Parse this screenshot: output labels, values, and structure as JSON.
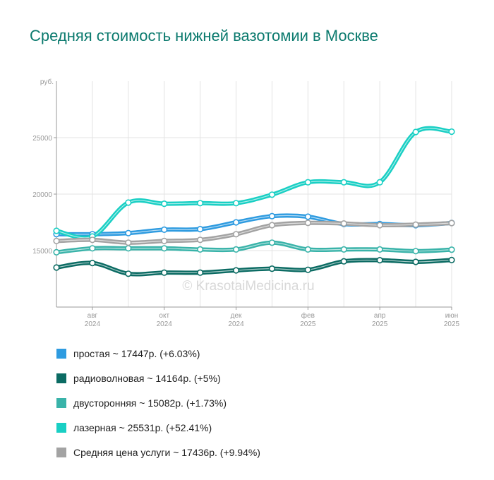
{
  "chart_data": {
    "type": "line",
    "title": "Средняя стоимость нижней вазотомии в Москве",
    "ylabel": "руб.",
    "ylim": [
      10000,
      30000
    ],
    "yticks": [
      15000,
      20000,
      25000
    ],
    "grid": true,
    "legend_position": "bottom",
    "watermark": "© KrasotaiMedicina.ru",
    "x": [
      "2024-07",
      "2024-08",
      "2024-09",
      "2024-10",
      "2024-11",
      "2024-12",
      "2025-01",
      "2025-02",
      "2025-03",
      "2025-04",
      "2025-05",
      "2025-06"
    ],
    "x_tick_labels": [
      {
        "x": "2024-08",
        "month": "авг",
        "year": "2024"
      },
      {
        "x": "2024-10",
        "month": "окт",
        "year": "2024"
      },
      {
        "x": "2024-12",
        "month": "дек",
        "year": "2024"
      },
      {
        "x": "2025-02",
        "month": "фев",
        "year": "2025"
      },
      {
        "x": "2025-04",
        "month": "апр",
        "year": "2025"
      },
      {
        "x": "2025-06",
        "month": "июн",
        "year": "2025"
      }
    ],
    "series": [
      {
        "key": "simple",
        "color": "#2e9be0",
        "values": [
          16450,
          16450,
          16550,
          16850,
          16900,
          17500,
          18050,
          18000,
          17350,
          17350,
          17250,
          17447
        ]
      },
      {
        "key": "radio",
        "color": "#0b6b63",
        "values": [
          13500,
          13900,
          12950,
          13050,
          13050,
          13250,
          13400,
          13300,
          14050,
          14150,
          14000,
          14164
        ]
      },
      {
        "key": "double",
        "color": "#39b3a9",
        "values": [
          14850,
          15200,
          15200,
          15200,
          15100,
          15100,
          15700,
          15100,
          15100,
          15100,
          14950,
          15082
        ]
      },
      {
        "key": "laser",
        "color": "#19cfc4",
        "values": [
          16750,
          16250,
          19250,
          19150,
          19200,
          19200,
          19950,
          21050,
          21050,
          21050,
          25500,
          25531
        ]
      },
      {
        "key": "average",
        "color": "#a3a3a3",
        "values": [
          15850,
          15950,
          15700,
          15850,
          15950,
          16450,
          17250,
          17450,
          17400,
          17250,
          17300,
          17436
        ]
      }
    ]
  },
  "legend": [
    {
      "label": "простая ~ 17447р. (+6.03%)",
      "color": "#2e9be0"
    },
    {
      "label": "радиоволновая ~ 14164р. (+5%)",
      "color": "#0b6b63"
    },
    {
      "label": "двусторонняя ~ 15082р. (+1.73%)",
      "color": "#39b3a9"
    },
    {
      "label": "лазерная ~ 25531р. (+52.41%)",
      "color": "#19cfc4"
    },
    {
      "label": "Средняя цена услуги ~ 17436р. (+9.94%)",
      "color": "#a3a3a3"
    }
  ]
}
